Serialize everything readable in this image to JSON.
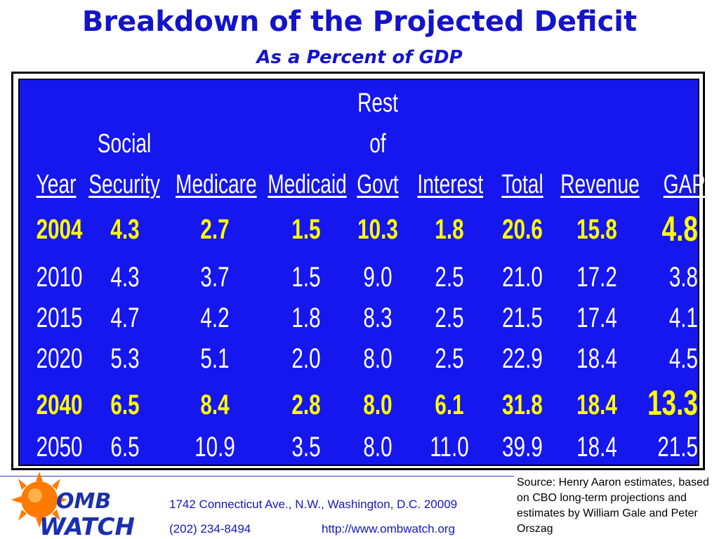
{
  "title": "Breakdown of the Projected Deficit",
  "subtitle": "As a Percent of GDP",
  "table": {
    "headers": {
      "year": "Year",
      "social_line1": "Social",
      "social_line2": "Security",
      "medicare": "Medicare",
      "medicaid": "Medicaid",
      "rest_line1": "Rest",
      "rest_line2": "of",
      "rest_line3": "Govt",
      "interest": "Interest",
      "total": "Total",
      "revenue": "Revenue",
      "gap": "GAP"
    },
    "rows": [
      {
        "highlight": true,
        "year": "2004",
        "social_security": "4.3",
        "medicare": "2.7",
        "medicaid": "1.5",
        "rest_of_govt": "10.3",
        "interest": "1.8",
        "total": "20.6",
        "revenue": "15.8",
        "gap": "4.8"
      },
      {
        "highlight": false,
        "year": "2010",
        "social_security": "4.3",
        "medicare": "3.7",
        "medicaid": "1.5",
        "rest_of_govt": "9.0",
        "interest": "2.5",
        "total": "21.0",
        "revenue": "17.2",
        "gap": "3.8"
      },
      {
        "highlight": false,
        "year": "2015",
        "social_security": "4.7",
        "medicare": "4.2",
        "medicaid": "1.8",
        "rest_of_govt": "8.3",
        "interest": "2.5",
        "total": "21.5",
        "revenue": "17.4",
        "gap": "4.1"
      },
      {
        "highlight": false,
        "year": "2020",
        "social_security": "5.3",
        "medicare": "5.1",
        "medicaid": "2.0",
        "rest_of_govt": "8.0",
        "interest": "2.5",
        "total": "22.9",
        "revenue": "18.4",
        "gap": "4.5"
      },
      {
        "highlight": true,
        "year": "2040",
        "social_security": "6.5",
        "medicare": "8.4",
        "medicaid": "2.8",
        "rest_of_govt": "8.0",
        "interest": "6.1",
        "total": "31.8",
        "revenue": "18.4",
        "gap": "13.3"
      },
      {
        "highlight": false,
        "year": "2050",
        "social_security": "6.5",
        "medicare": "10.9",
        "medicaid": "3.5",
        "rest_of_govt": "8.0",
        "interest": "11.0",
        "total": "39.9",
        "revenue": "18.4",
        "gap": "21.5"
      }
    ]
  },
  "footer": {
    "logo_text_top": "OMB",
    "logo_text_bottom": "WATCH",
    "address": "1742 Connecticut Ave., N.W., Washington, D.C. 20009",
    "phone": "(202) 234-8494",
    "url": "http://www.ombwatch.org",
    "source": "Source: Henry Aaron estimates, based on CBO long-term projections and estimates by William Gale and Peter Orszag"
  },
  "colors": {
    "title": "#1414c8",
    "panel": "#1616ee",
    "highlight": "#ffff00",
    "normal": "#ffffff",
    "logo_orange": "#ff7a00",
    "logo_blue": "#1a2fb0"
  }
}
